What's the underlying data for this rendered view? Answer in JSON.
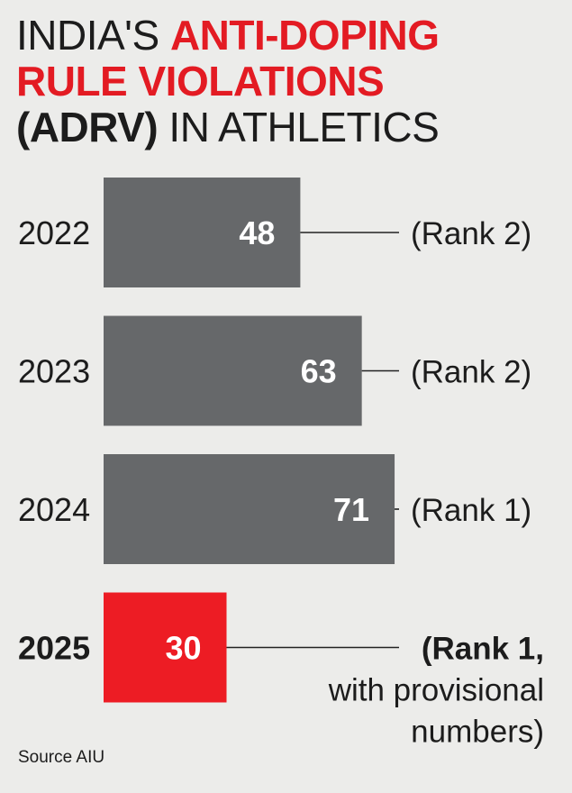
{
  "title": {
    "part1": "INDIA'S ",
    "part2": "ANTI-DOPING",
    "part3": "RULE VIOLATIONS",
    "part4": "(ADRV)",
    "part5": " IN ATHLETICS"
  },
  "colors": {
    "bar": "#66686a",
    "highlight": "#ed1c24",
    "text": "#1c1c1c",
    "background": "#ececea"
  },
  "chart_data": {
    "type": "bar",
    "orientation": "horizontal",
    "title": "INDIA'S ANTI-DOPING RULE VIOLATIONS (ADRV) IN ATHLETICS",
    "categories": [
      "2022",
      "2023",
      "2024",
      "2025"
    ],
    "values": [
      48,
      63,
      71,
      30
    ],
    "highlight_index": 3,
    "annotations": [
      [
        "(Rank 2)"
      ],
      [
        "(Rank 2)"
      ],
      [
        "(Rank 1)"
      ],
      [
        "(Rank 1,",
        "with provisional",
        "numbers)"
      ]
    ],
    "xlim": [
      0,
      80
    ],
    "grid": false,
    "legend": "none"
  },
  "source": "Source AIU"
}
